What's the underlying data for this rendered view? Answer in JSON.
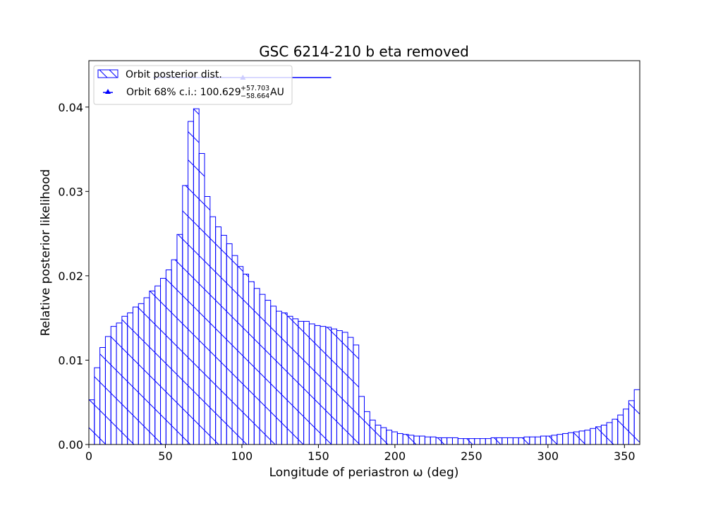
{
  "chart_data": {
    "type": "bar",
    "title": "GSC 6214-210 b eta removed",
    "xlabel": "Longitude of periastron ω (deg)",
    "ylabel": "Relative posterior likelihood",
    "xlim": [
      0,
      360
    ],
    "ylim": [
      0,
      0.0455
    ],
    "xticks": [
      0,
      50,
      100,
      150,
      200,
      250,
      300,
      350
    ],
    "xtick_labels": [
      "0",
      "50",
      "100",
      "150",
      "200",
      "250",
      "300",
      "350"
    ],
    "yticks": [
      0,
      0.01,
      0.02,
      0.03,
      0.04
    ],
    "ytick_labels": [
      "0.00",
      "0.01",
      "0.02",
      "0.03",
      "0.04"
    ],
    "grid": false,
    "legend_position": "top-left",
    "color": "#0000ff",
    "bin_width": 3.6,
    "series": [
      {
        "name": "Orbit posterior dist.",
        "style": "hatched-histogram",
        "values": [
          0.0053,
          0.0091,
          0.0115,
          0.0128,
          0.014,
          0.0144,
          0.0152,
          0.0156,
          0.0163,
          0.0167,
          0.0174,
          0.0182,
          0.0188,
          0.0197,
          0.0207,
          0.0219,
          0.0249,
          0.0307,
          0.0383,
          0.0398,
          0.0345,
          0.0294,
          0.027,
          0.0258,
          0.0248,
          0.0238,
          0.0224,
          0.0211,
          0.0202,
          0.0193,
          0.0185,
          0.0178,
          0.0171,
          0.0164,
          0.0158,
          0.0156,
          0.0152,
          0.0149,
          0.0146,
          0.0146,
          0.0143,
          0.0141,
          0.014,
          0.0139,
          0.0137,
          0.0135,
          0.0133,
          0.0127,
          0.0118,
          0.0057,
          0.0039,
          0.0029,
          0.0023,
          0.002,
          0.0017,
          0.0015,
          0.0013,
          0.0012,
          0.0011,
          0.001,
          0.001,
          0.0009,
          0.0009,
          0.0008,
          0.0008,
          0.0008,
          0.0008,
          0.0007,
          0.0007,
          0.0007,
          0.0007,
          0.0007,
          0.0007,
          0.0008,
          0.0008,
          0.0008,
          0.0008,
          0.0008,
          0.0008,
          0.0009,
          0.0009,
          0.0009,
          0.001,
          0.001,
          0.0011,
          0.0012,
          0.0013,
          0.0014,
          0.0015,
          0.0016,
          0.0017,
          0.0019,
          0.0021,
          0.0023,
          0.0026,
          0.003,
          0.0035,
          0.0042,
          0.0052,
          0.0065
        ]
      },
      {
        "name": "Orbit 68% c.i.",
        "style": "errorbar",
        "legend_prefix": "Orbit 68% c.i.: ",
        "value_label": "100.629",
        "plus_label": "+57.703",
        "minus_label": "−58.664",
        "unit_label": " AU",
        "x": 100.629,
        "y": 0.0435,
        "x_err_plus": 57.703,
        "x_err_minus": 58.664
      }
    ]
  }
}
